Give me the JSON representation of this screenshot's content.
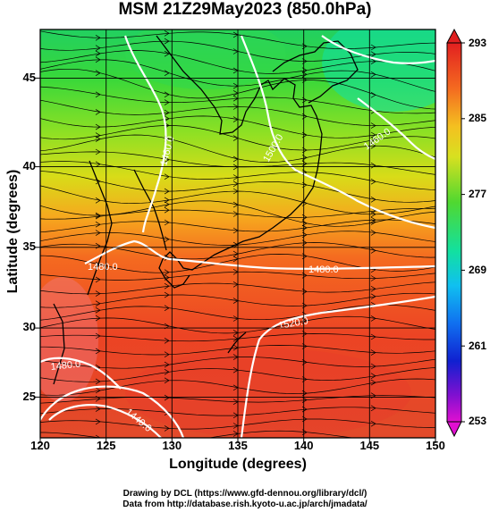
{
  "title": "MSM 21Z29May2023 (850.0hPa)",
  "map": {
    "xlabel": "Longitude (degrees)",
    "ylabel": "Latitude  (degrees)",
    "x_ticks": [
      "120",
      "125",
      "130",
      "135",
      "140",
      "145",
      "150"
    ],
    "y_ticks": [
      "45",
      "40",
      "35",
      "30",
      "25"
    ],
    "lon_range": [
      120,
      150
    ],
    "lat_range": [
      22.4,
      47.6
    ]
  },
  "contours": {
    "labels": [
      "1460.0",
      "1480.0",
      "1480.0",
      "1500.0",
      "1520.0",
      "1480.0",
      "1460.0",
      "1440.0"
    ]
  },
  "colorbar": {
    "ticks": [
      "293",
      "285",
      "277",
      "269",
      "261",
      "253"
    ],
    "range": [
      253,
      293
    ]
  },
  "credits": {
    "line1": "Drawing by DCL (https://www.gfd-dennou.org/library/dcl/)",
    "line2": "Data from http://database.rish.kyoto-u.ac.jp/arch/jmadata/"
  },
  "colors": {
    "warm": "#e8402a",
    "green": "#2fd232",
    "cyan": "#12e0a0",
    "blue": "#1020d0",
    "magenta": "#c010c0"
  }
}
